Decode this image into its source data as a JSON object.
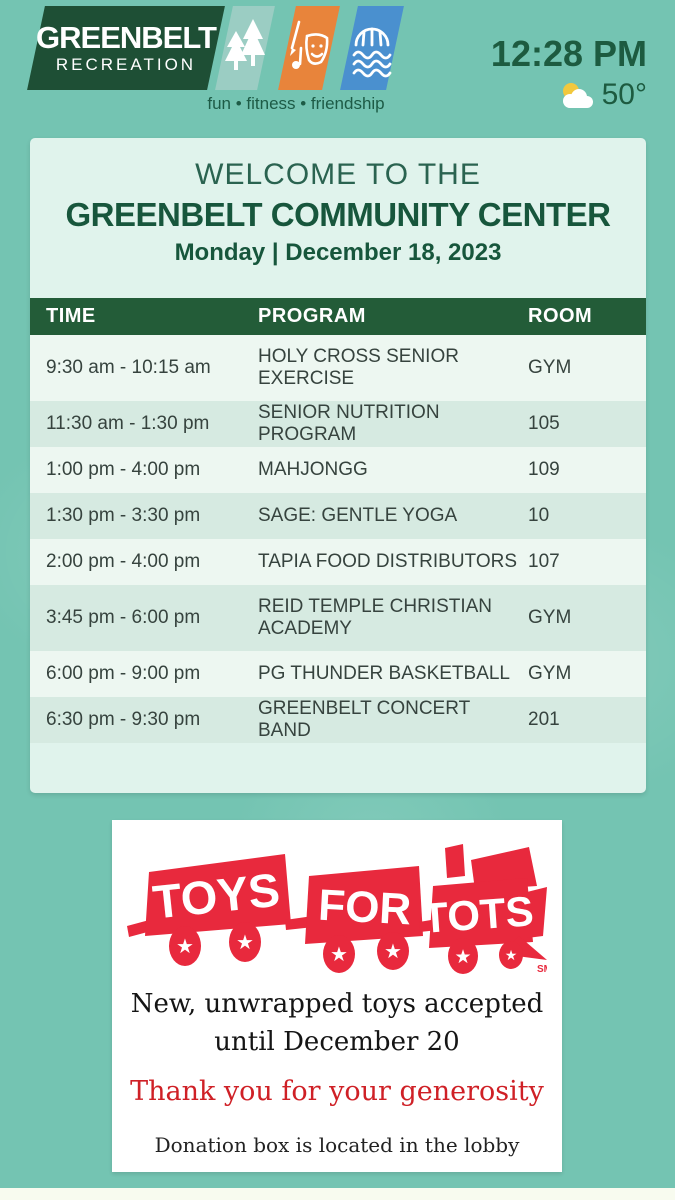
{
  "colors": {
    "background_teal": "#74c4b2",
    "dark_green": "#1d5b40",
    "table_header_green": "#235c38",
    "card_mint": "#e0f3ec",
    "row_light": "#edf7f1",
    "row_shaded": "#d6eae1",
    "badge_teal": "#9bcdc3",
    "badge_orange": "#e8843b",
    "badge_blue": "#4a90cf",
    "toys_red": "#e8293d",
    "thanks_red": "#cf2026",
    "sun_yellow": "#f2c83d"
  },
  "header": {
    "logo": {
      "title": "GREENBELT",
      "subtitle": "RECREATION"
    },
    "badge_icons": [
      "pine-trees-icon",
      "arts-mask-brush-icon",
      "aquatics-dome-waves-icon"
    ],
    "tagline": "fun  •  fitness  •  friendship",
    "clock": {
      "time": "12:28 PM"
    },
    "weather": {
      "icon": "partly-cloudy",
      "temperature": "50°"
    }
  },
  "welcome": {
    "heading": "WELCOME TO THE",
    "title": "GREENBELT COMMUNITY CENTER",
    "date": "Monday | December 18, 2023"
  },
  "schedule": {
    "columns": [
      "TIME",
      "PROGRAM",
      "ROOM"
    ],
    "rows": [
      {
        "time": "9:30 am - 10:15 am",
        "program": "HOLY CROSS SENIOR EXERCISE",
        "room": "GYM",
        "lines": 2
      },
      {
        "time": "11:30 am - 1:30 pm",
        "program": "SENIOR NUTRITION PROGRAM",
        "room": "105",
        "lines": 1
      },
      {
        "time": "1:00 pm - 4:00 pm",
        "program": "MAHJONGG",
        "room": "109",
        "lines": 1
      },
      {
        "time": "1:30 pm - 3:30 pm",
        "program": "SAGE: GENTLE YOGA",
        "room": "10",
        "lines": 1
      },
      {
        "time": "2:00 pm - 4:00 pm",
        "program": "TAPIA FOOD DISTRIBUTORS",
        "room": "107",
        "lines": 1
      },
      {
        "time": "3:45 pm - 6:00 pm",
        "program": "REID TEMPLE CHRISTIAN ACADEMY",
        "room": "GYM",
        "lines": 2
      },
      {
        "time": "6:00 pm - 9:00 pm",
        "program": "PG THUNDER BASKETBALL",
        "room": "GYM",
        "lines": 1
      },
      {
        "time": "6:30 pm - 9:30 pm",
        "program": "GREENBELT CONCERT BAND",
        "room": "201",
        "lines": 1
      }
    ]
  },
  "toys_for_tots": {
    "words": [
      "TOYS",
      "FOR",
      "TOTS"
    ],
    "trademark": "SM",
    "line1": "New, unwrapped toys accepted",
    "line2": "until December 20",
    "thanks": "Thank you for your generosity",
    "note": "Donation box is located in the lobby"
  }
}
